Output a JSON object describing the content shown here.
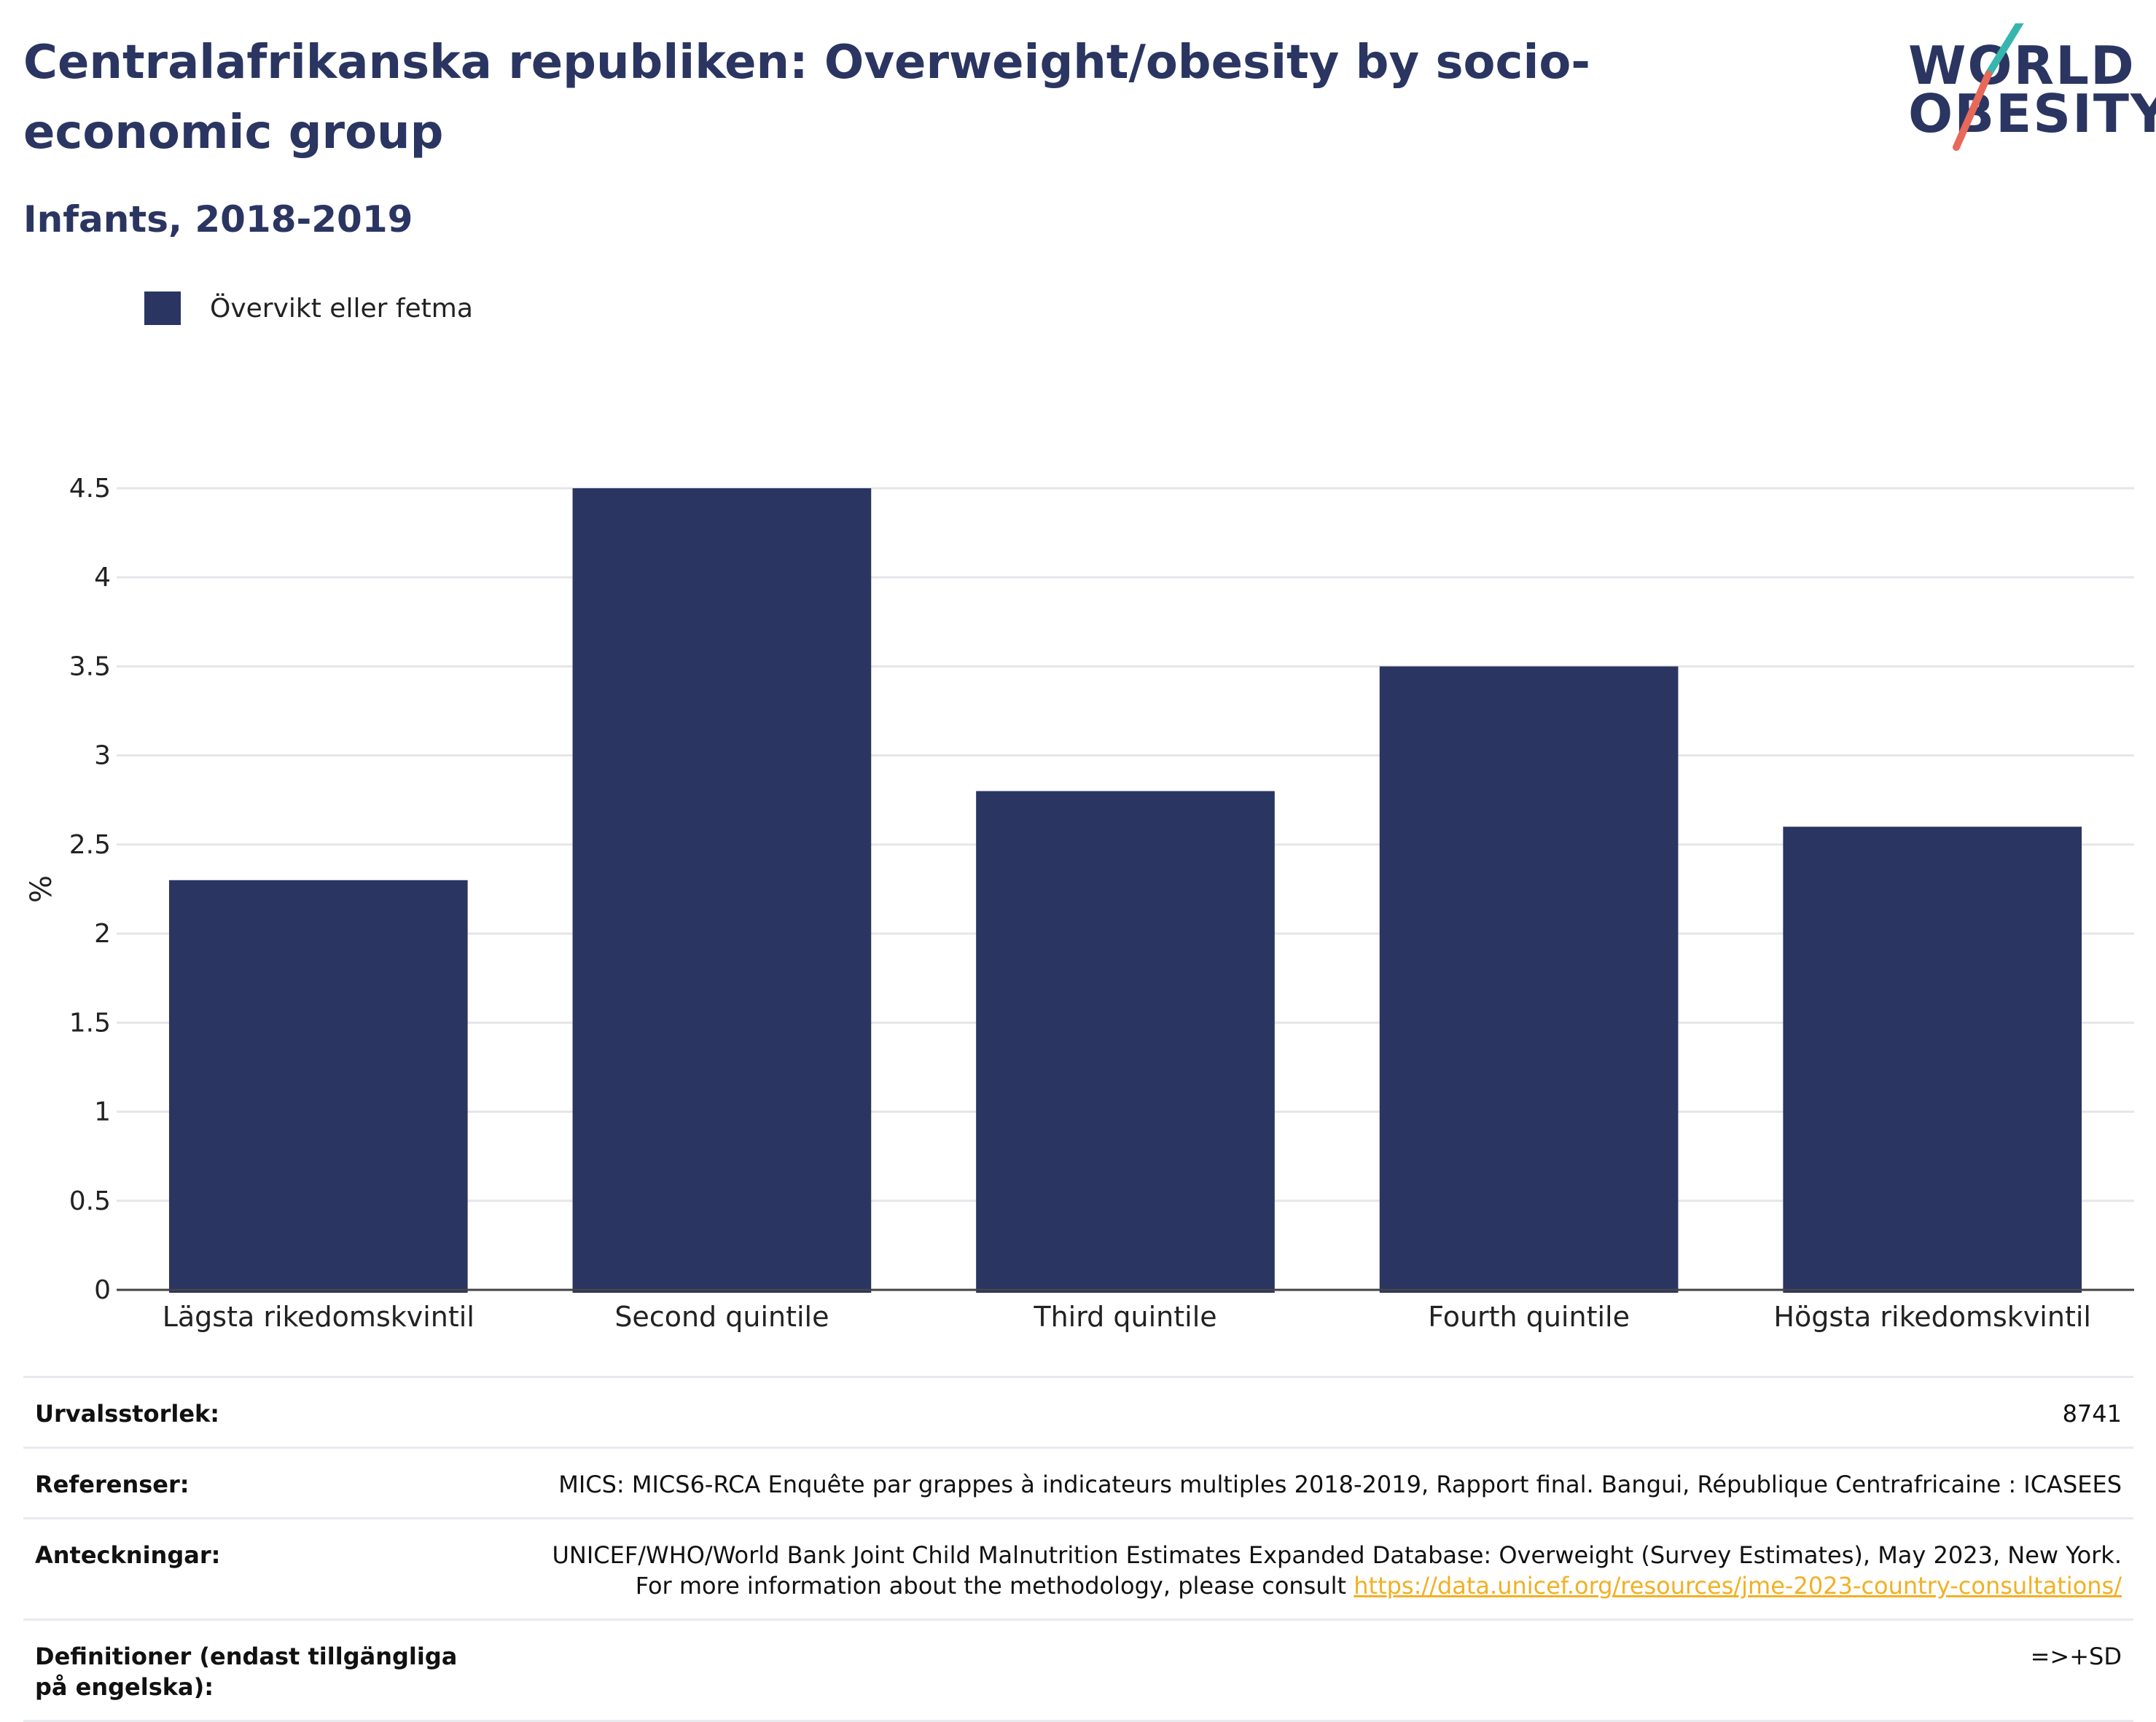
{
  "header": {
    "title": "Centralafrikanska republiken: Overweight/obesity by socio-economic group",
    "subtitle": "Infants, 2018-2019"
  },
  "logo": {
    "line1": "WORLD",
    "line2": "OBESITY",
    "slash_colors": [
      "#36b6ad",
      "#e8685a"
    ]
  },
  "legend": {
    "label": "Övervikt eller fetma",
    "color": "#2a3561"
  },
  "chart_data": {
    "type": "bar",
    "categories": [
      "Lägsta rikedomskvintil",
      "Second quintile",
      "Third quintile",
      "Fourth quintile",
      "Högsta rikedomskvintil"
    ],
    "series": [
      {
        "name": "Övervikt eller fetma",
        "values": [
          2.3,
          4.5,
          2.8,
          3.5,
          2.6
        ],
        "color": "#2a3561"
      }
    ],
    "ylabel": "%",
    "ylim": [
      0,
      4.5
    ],
    "yticks": [
      0,
      0.5,
      1,
      1.5,
      2,
      2.5,
      3,
      3.5,
      4,
      4.5
    ],
    "ytick_labels": [
      "0",
      "0.5",
      "1",
      "1.5",
      "2",
      "2.5",
      "3",
      "3.5",
      "4",
      "4.5"
    ],
    "grid": true,
    "legend_position": "top-left"
  },
  "footer": {
    "rows": [
      {
        "label": "Urvalsstorlek:",
        "value": "8741"
      },
      {
        "label": "Referenser:",
        "value": "MICS: MICS6-RCA Enquête par grappes à indicateurs multiples 2018-2019, Rapport final. Bangui, République Centrafricaine : ICASEES"
      },
      {
        "label": "Anteckningar:",
        "value": "UNICEF/WHO/World Bank Joint Child Malnutrition Estimates Expanded Database: Overweight (Survey Estimates), May 2023, New York. For more information about the methodology, please consult ",
        "link": "https://data.unicef.org/resources/jme-2023-country-consultations/"
      },
      {
        "label": "Definitioner (endast tillgängliga på engelska):",
        "value": "=>+SD"
      }
    ]
  }
}
